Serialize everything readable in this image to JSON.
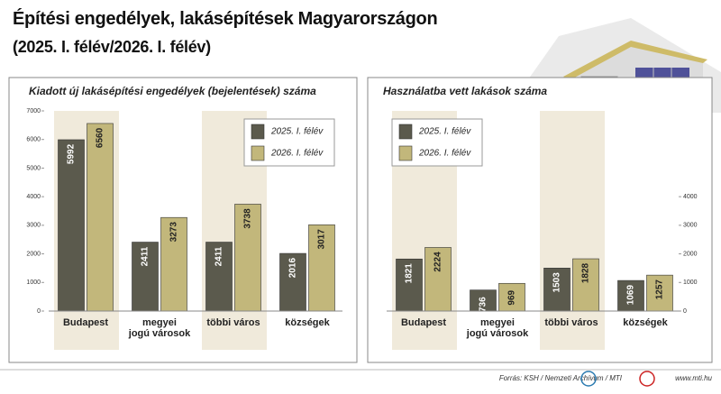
{
  "title": "Építési engedélyek, lakásépítések Magyarországon",
  "subtitle": "(2025. I. félév/2026. I. félév)",
  "source": "Forrás: KSH / Nemzeti Archívum / MTI",
  "url": "www.mti.hu",
  "chart_data": [
    {
      "type": "bar",
      "title": "Kiadott új lakásépítési engedélyek (bejelentések) száma",
      "categories": [
        "Budapest",
        "megyei\njogú városok",
        "többi város",
        "községek"
      ],
      "series": [
        {
          "name": "2025. I. félév",
          "color": "#5b5a4d",
          "values": [
            5992,
            2411,
            2411,
            2016
          ]
        },
        {
          "name": "2026. I. félév",
          "color": "#c2b77b",
          "values": [
            6560,
            3273,
            3738,
            3017
          ]
        }
      ],
      "ylim": [
        0,
        7000
      ],
      "yticks": [
        0,
        1000,
        2000,
        3000,
        4000,
        5000,
        6000,
        7000
      ],
      "y_axis_side": "left",
      "legend": "upper right"
    },
    {
      "type": "bar",
      "title": "Használatba vett lakások száma",
      "categories": [
        "Budapest",
        "megyei\njogú városok",
        "többi város",
        "községek"
      ],
      "series": [
        {
          "name": "2025. I. félév",
          "color": "#5b5a4d",
          "values": [
            1821,
            736,
            1503,
            1069
          ]
        },
        {
          "name": "2026. I. félév",
          "color": "#c2b77b",
          "values": [
            2224,
            969,
            1828,
            1257
          ]
        }
      ],
      "ylim": [
        0,
        7000
      ],
      "yticks": [
        0,
        1000,
        2000,
        3000,
        4000
      ],
      "y_axis_side": "right",
      "legend": "upper left"
    }
  ]
}
